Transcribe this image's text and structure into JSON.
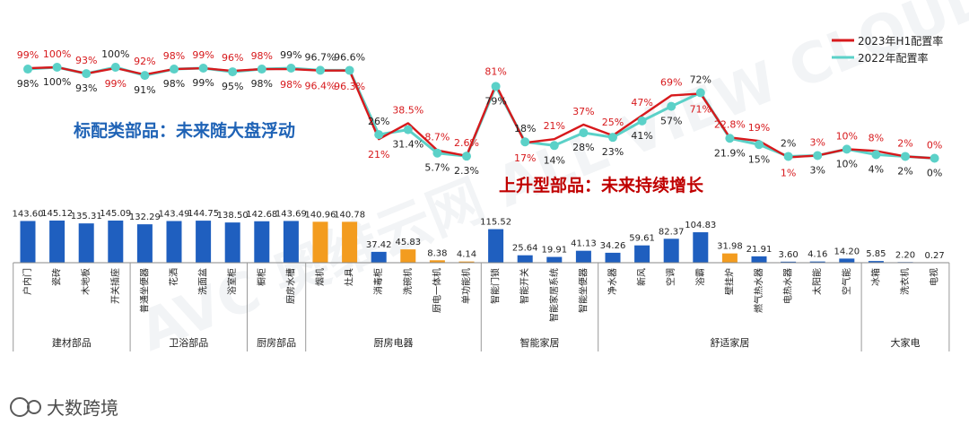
{
  "legend": {
    "series_a": "2023年H1配置率",
    "series_b": "2022年配置率"
  },
  "callouts": {
    "standard": "标配类部品：未来随大盘浮动",
    "rising": "上升型部品：未来持续增长"
  },
  "watermark": "AVC 奥维云网 ALL VIEW CLOUD",
  "footer": "大数跨境",
  "chart_data": {
    "type": "line+bar",
    "categories": [
      "户内门",
      "瓷砖",
      "木地板",
      "开关插座",
      "普通坐便器",
      "花洒",
      "洗面盆",
      "浴室柜",
      "橱柜",
      "厨房水槽",
      "烟机",
      "灶具",
      "消毒柜",
      "洗碗机",
      "厨电一体机",
      "单功能机",
      "智能门锁",
      "智能开关",
      "智能家居系统",
      "智能坐便器",
      "净水器",
      "新风",
      "空调",
      "浴霸",
      "壁挂炉",
      "燃气热水器",
      "电热水器",
      "太阳能",
      "空气能",
      "冰箱",
      "洗衣机",
      "电视"
    ],
    "groups": [
      {
        "name": "建材部品",
        "start": 0,
        "end": 3
      },
      {
        "name": "卫浴部品",
        "start": 4,
        "end": 7
      },
      {
        "name": "厨房部品",
        "start": 8,
        "end": 9
      },
      {
        "name": "厨房电器",
        "start": 10,
        "end": 15
      },
      {
        "name": "智能家居",
        "start": 16,
        "end": 19
      },
      {
        "name": "舒适家居",
        "start": 20,
        "end": 28
      },
      {
        "name": "大家电",
        "start": 29,
        "end": 31
      }
    ],
    "line_series": [
      {
        "name": "2023年H1配置率",
        "color": "#d7191c",
        "values": [
          99,
          100,
          93,
          99,
          92,
          98,
          99,
          96,
          98,
          98,
          96.4,
          96.3,
          21,
          38.5,
          8.7,
          2.6,
          81,
          17,
          21,
          37,
          25,
          47,
          69,
          71,
          22.8,
          19,
          1,
          3,
          10,
          8,
          2,
          0
        ],
        "labels": [
          "99%",
          "100%",
          "93%",
          "99%",
          "92%",
          "98%",
          "99%",
          "96%",
          "98%",
          "98%",
          "96.4%",
          "96.3%",
          "21%",
          "38.5%",
          "8.7%",
          "2.6%",
          "81%",
          "17%",
          "21%",
          "37%",
          "25%",
          "47%",
          "69%",
          "71%",
          "22.8%",
          "19%",
          "1%",
          "3%",
          "10%",
          "8%",
          "2%",
          "0%"
        ]
      },
      {
        "name": "2022年配置率",
        "color": "#5bd1c8",
        "values": [
          98,
          100,
          93,
          100,
          91,
          98,
          99,
          95,
          98,
          99,
          96.7,
          96.6,
          26,
          31.4,
          5.7,
          2.3,
          79,
          18,
          14,
          28,
          23,
          41,
          57,
          72,
          21.9,
          15,
          2,
          3,
          10,
          4,
          2,
          0
        ],
        "labels": [
          "98%",
          "100%",
          "93%",
          "100%",
          "91%",
          "98%",
          "99%",
          "95%",
          "98%",
          "99%",
          "96.7%",
          "96.6%",
          "26%",
          "31.4%",
          "5.7%",
          "2.3%",
          "79%",
          "18%",
          "14%",
          "28%",
          "23%",
          "41%",
          "57%",
          "72%",
          "21.9%",
          "15%",
          "2%",
          "3%",
          "10%",
          "4%",
          "2%",
          "0%"
        ]
      }
    ],
    "bar_series": {
      "values": [
        143.6,
        145.12,
        135.31,
        145.09,
        132.29,
        143.49,
        144.75,
        138.5,
        142.68,
        143.69,
        140.96,
        140.78,
        37.42,
        45.83,
        8.38,
        4.14,
        115.52,
        25.64,
        19.91,
        41.13,
        34.26,
        59.61,
        82.37,
        104.83,
        31.98,
        21.91,
        3.6,
        4.16,
        14.2,
        5.85,
        2.2,
        0.27
      ],
      "labels": [
        "143.60",
        "145.12",
        "135.31",
        "145.09",
        "132.29",
        "143.49",
        "144.75",
        "138.50",
        "142.68",
        "143.69",
        "140.96",
        "140.78",
        "37.42",
        "45.83",
        "8.38",
        "4.14",
        "115.52",
        "25.64",
        "19.91",
        "41.13",
        "34.26",
        "59.61",
        "82.37",
        "104.83",
        "31.98",
        "21.91",
        "3.60",
        "4.16",
        "14.20",
        "5.85",
        "2.20",
        "0.27"
      ],
      "colors": [
        "#1f5fbf",
        "#1f5fbf",
        "#1f5fbf",
        "#1f5fbf",
        "#1f5fbf",
        "#1f5fbf",
        "#1f5fbf",
        "#1f5fbf",
        "#1f5fbf",
        "#1f5fbf",
        "#f39c1f",
        "#f39c1f",
        "#1f5fbf",
        "#f39c1f",
        "#f39c1f",
        "#f39c1f",
        "#1f5fbf",
        "#1f5fbf",
        "#1f5fbf",
        "#1f5fbf",
        "#1f5fbf",
        "#1f5fbf",
        "#1f5fbf",
        "#1f5fbf",
        "#f39c1f",
        "#1f5fbf",
        "#1f5fbf",
        "#1f5fbf",
        "#1f5fbf",
        "#1f5fbf",
        "#1f5fbf",
        "#1f5fbf"
      ]
    },
    "legend_position": "top-right",
    "grid": false
  }
}
